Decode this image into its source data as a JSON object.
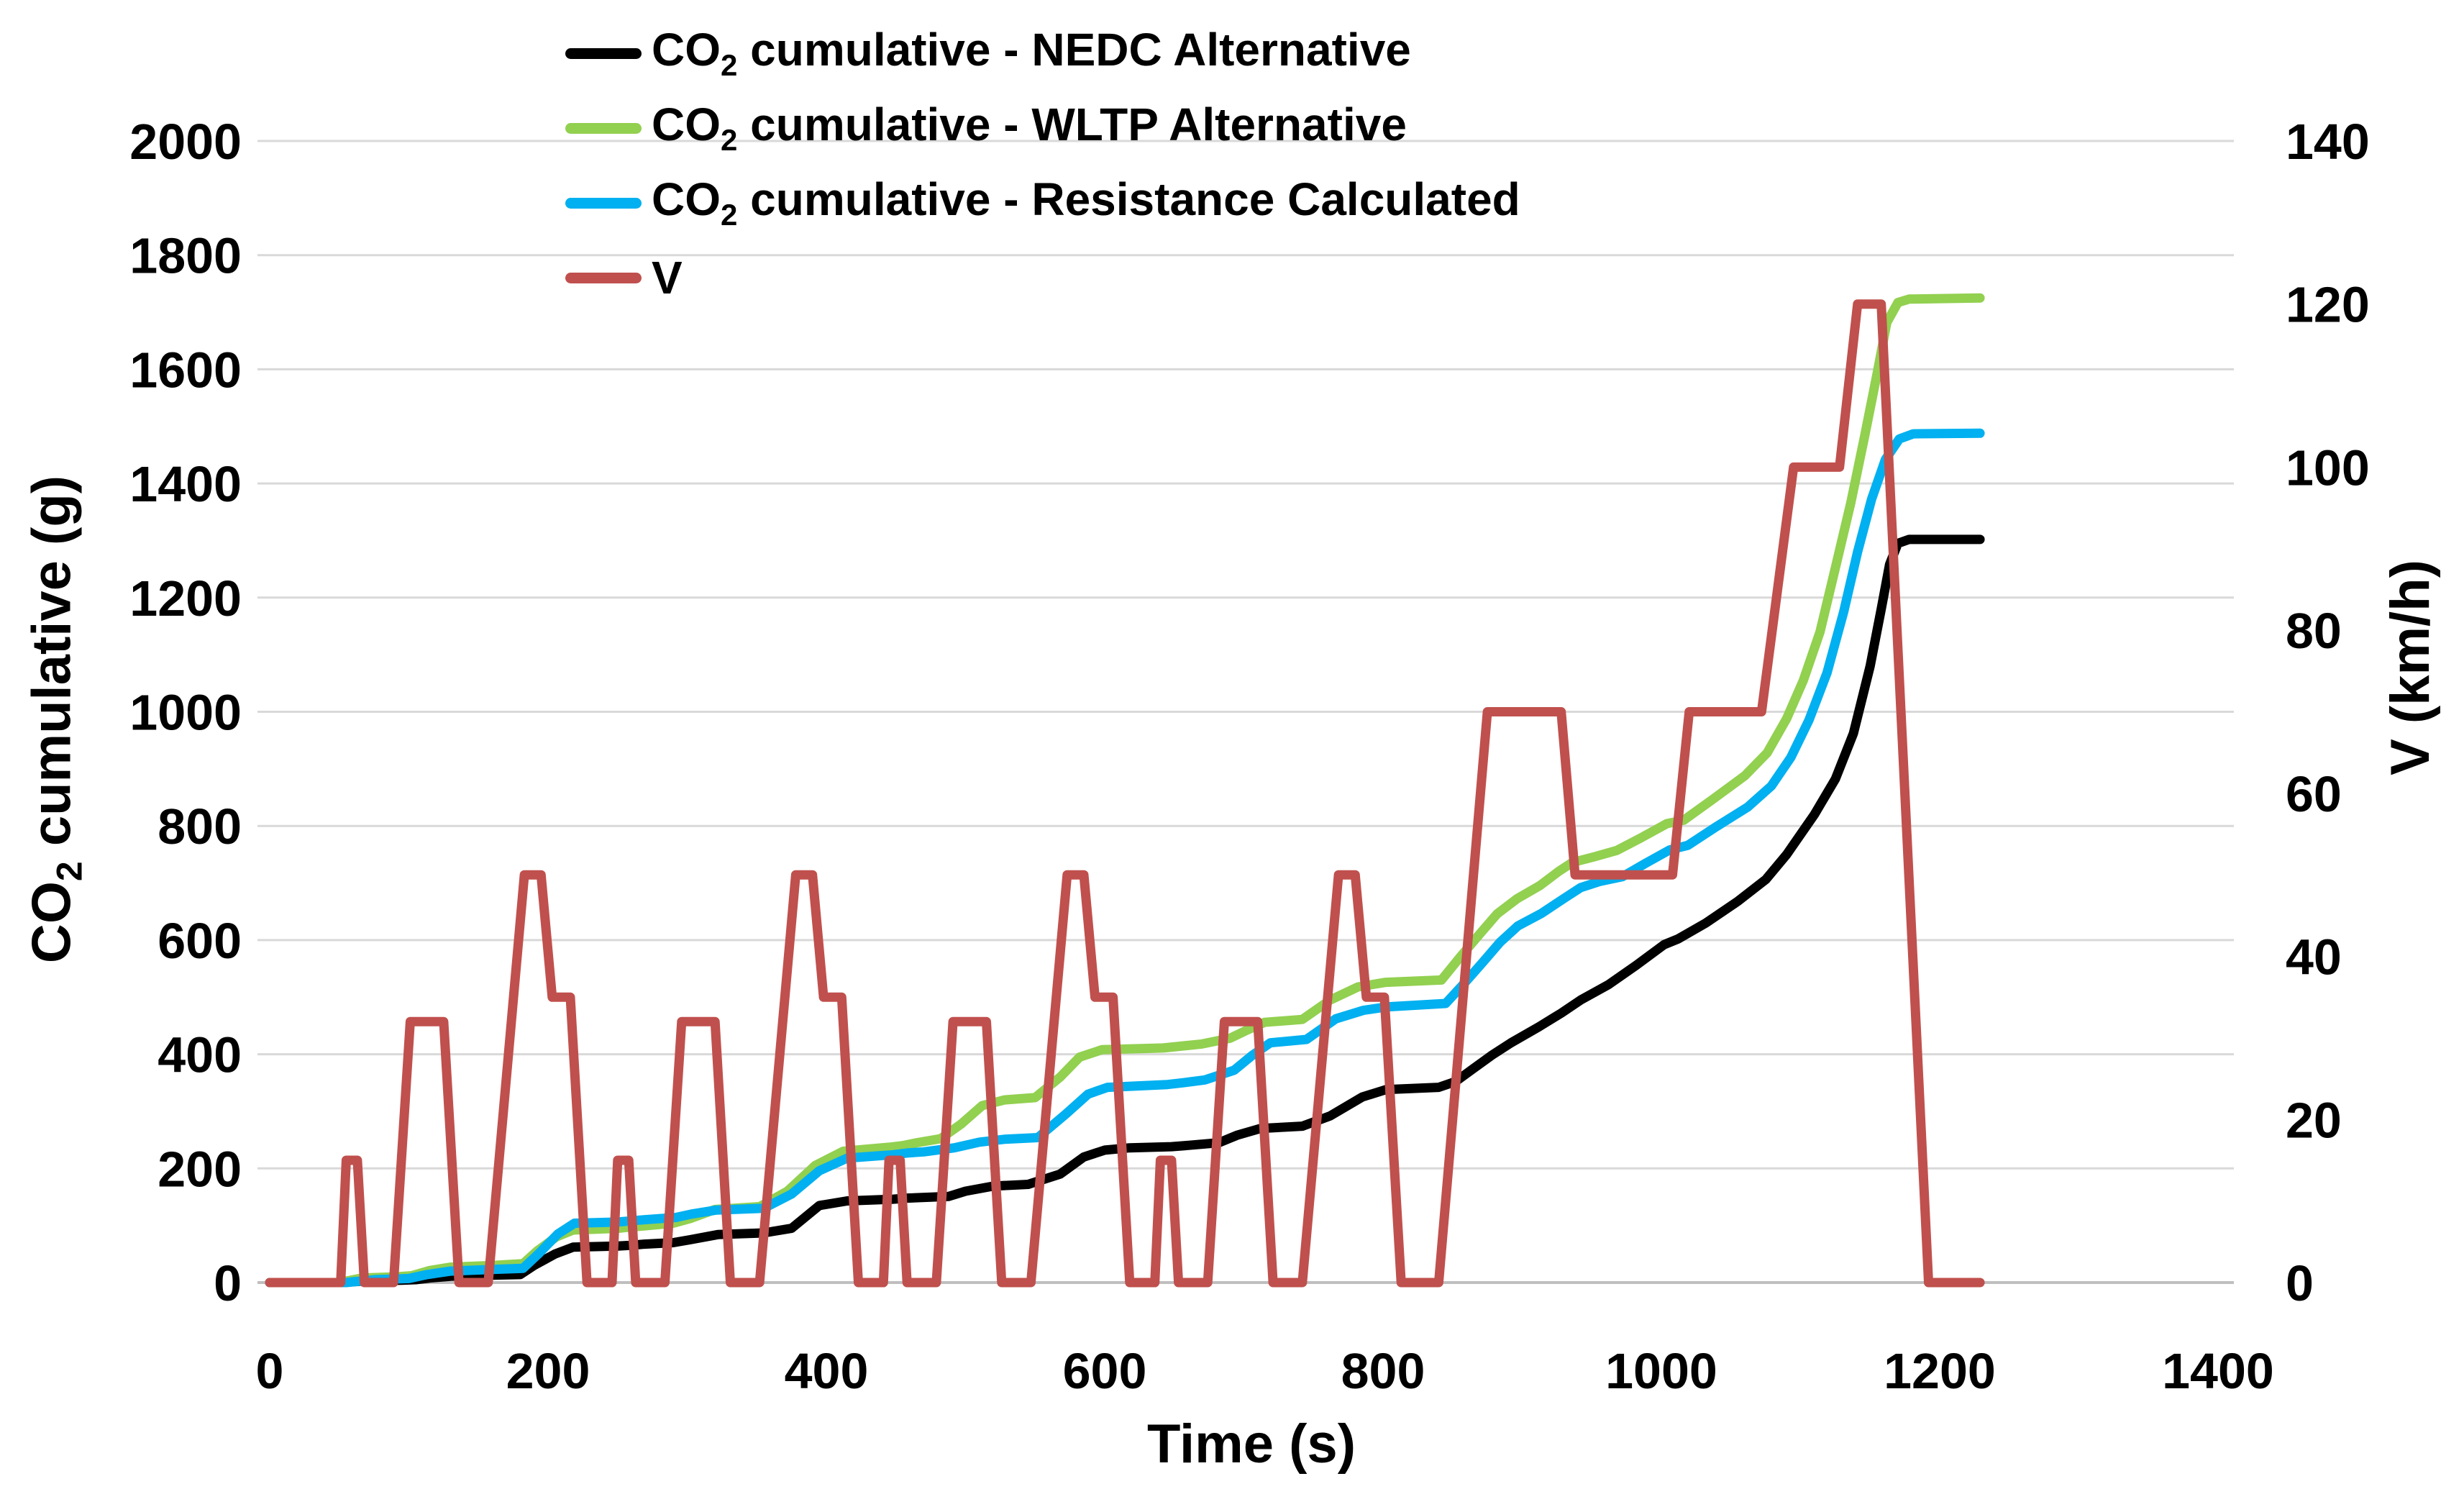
{
  "chart_data": {
    "type": "line",
    "title": "",
    "grid": {
      "horizontal": true,
      "vertical": false,
      "color": "#D9D9D9",
      "axis_color": "#BFBFBF"
    },
    "legend_position": "top-center-inside",
    "x_axis": {
      "label": "Time (s)",
      "min": 0,
      "max": 1400,
      "tick_step": 200,
      "ticks": [
        0,
        200,
        400,
        600,
        800,
        1000,
        1200,
        1400
      ]
    },
    "y_axis_left": {
      "title": "CO2 cumulative (g)",
      "title_parts": {
        "pre": "CO",
        "sub": "2",
        "post": " cumulative (g)"
      },
      "min": 0,
      "max": 2000,
      "tick_step": 200,
      "ticks": [
        0,
        200,
        400,
        600,
        800,
        1000,
        1200,
        1400,
        1600,
        1800,
        2000
      ]
    },
    "y_axis_right": {
      "title": "V (km/h)",
      "min": 0,
      "max": 140,
      "tick_step": 20,
      "ticks": [
        0,
        20,
        40,
        60,
        80,
        100,
        120,
        140
      ]
    },
    "series": [
      {
        "id": "nedc",
        "name": "CO2 cumulative - NEDC Alternative",
        "label_parts": {
          "pre": "CO",
          "sub": "2",
          "post": " cumulative - NEDC Alternative"
        },
        "color": "#000000",
        "y_axis": "left",
        "final_value": 1302,
        "points": [
          [
            0,
            0
          ],
          [
            50,
            0
          ],
          [
            57,
            1
          ],
          [
            70,
            3
          ],
          [
            95,
            4
          ],
          [
            105,
            5
          ],
          [
            115,
            8
          ],
          [
            130,
            11
          ],
          [
            160,
            13
          ],
          [
            180,
            14
          ],
          [
            190,
            30
          ],
          [
            205,
            50
          ],
          [
            218,
            62
          ],
          [
            250,
            64
          ],
          [
            258,
            65
          ],
          [
            268,
            67
          ],
          [
            290,
            70
          ],
          [
            302,
            75
          ],
          [
            322,
            84
          ],
          [
            355,
            87
          ],
          [
            375,
            95
          ],
          [
            395,
            135
          ],
          [
            415,
            143
          ],
          [
            448,
            146
          ],
          [
            458,
            148
          ],
          [
            488,
            151
          ],
          [
            500,
            160
          ],
          [
            520,
            169
          ],
          [
            545,
            172
          ],
          [
            568,
            190
          ],
          [
            585,
            220
          ],
          [
            600,
            232
          ],
          [
            618,
            236
          ],
          [
            648,
            238
          ],
          [
            658,
            240
          ],
          [
            682,
            245
          ],
          [
            695,
            258
          ],
          [
            712,
            270
          ],
          [
            742,
            274
          ],
          [
            762,
            292
          ],
          [
            785,
            325
          ],
          [
            802,
            338
          ],
          [
            840,
            342
          ],
          [
            852,
            352
          ],
          [
            865,
            375
          ],
          [
            878,
            398
          ],
          [
            892,
            420
          ],
          [
            912,
            448
          ],
          [
            928,
            472
          ],
          [
            942,
            495
          ],
          [
            962,
            522
          ],
          [
            982,
            556
          ],
          [
            1002,
            592
          ],
          [
            1012,
            602
          ],
          [
            1032,
            630
          ],
          [
            1055,
            668
          ],
          [
            1075,
            706
          ],
          [
            1090,
            750
          ],
          [
            1110,
            820
          ],
          [
            1125,
            882
          ],
          [
            1138,
            962
          ],
          [
            1150,
            1080
          ],
          [
            1158,
            1180
          ],
          [
            1164,
            1258
          ],
          [
            1170,
            1295
          ],
          [
            1178,
            1302
          ],
          [
            1229,
            1302
          ]
        ]
      },
      {
        "id": "wltp",
        "name": "CO2 cumulative - WLTP Alternative",
        "label_parts": {
          "pre": "CO",
          "sub": "2",
          "post": " cumulative - WLTP Alternative"
        },
        "color": "#92D050",
        "y_axis": "left",
        "final_value": 1725,
        "points": [
          [
            0,
            0
          ],
          [
            48,
            0
          ],
          [
            56,
            3
          ],
          [
            66,
            8
          ],
          [
            90,
            10
          ],
          [
            102,
            12
          ],
          [
            115,
            21
          ],
          [
            130,
            27
          ],
          [
            160,
            30
          ],
          [
            182,
            33
          ],
          [
            192,
            55
          ],
          [
            206,
            80
          ],
          [
            218,
            92
          ],
          [
            250,
            95
          ],
          [
            258,
            97
          ],
          [
            268,
            99
          ],
          [
            290,
            104
          ],
          [
            302,
            112
          ],
          [
            320,
            128
          ],
          [
            352,
            133
          ],
          [
            372,
            160
          ],
          [
            392,
            205
          ],
          [
            412,
            230
          ],
          [
            445,
            237
          ],
          [
            455,
            240
          ],
          [
            465,
            245
          ],
          [
            482,
            252
          ],
          [
            497,
            278
          ],
          [
            512,
            310
          ],
          [
            528,
            320
          ],
          [
            550,
            324
          ],
          [
            568,
            360
          ],
          [
            582,
            395
          ],
          [
            598,
            408
          ],
          [
            642,
            411
          ],
          [
            654,
            414
          ],
          [
            670,
            418
          ],
          [
            690,
            428
          ],
          [
            702,
            442
          ],
          [
            715,
            456
          ],
          [
            742,
            461
          ],
          [
            762,
            495
          ],
          [
            782,
            518
          ],
          [
            802,
            526
          ],
          [
            842,
            530
          ],
          [
            856,
            572
          ],
          [
            870,
            612
          ],
          [
            882,
            646
          ],
          [
            896,
            672
          ],
          [
            913,
            696
          ],
          [
            926,
            720
          ],
          [
            936,
            736
          ],
          [
            952,
            746
          ],
          [
            968,
            757
          ],
          [
            986,
            780
          ],
          [
            1004,
            804
          ],
          [
            1016,
            810
          ],
          [
            1036,
            845
          ],
          [
            1060,
            888
          ],
          [
            1076,
            928
          ],
          [
            1090,
            988
          ],
          [
            1102,
            1055
          ],
          [
            1114,
            1140
          ],
          [
            1126,
            1262
          ],
          [
            1136,
            1365
          ],
          [
            1146,
            1482
          ],
          [
            1155,
            1592
          ],
          [
            1162,
            1682
          ],
          [
            1170,
            1717
          ],
          [
            1178,
            1723
          ],
          [
            1229,
            1725
          ]
        ]
      },
      {
        "id": "resistance",
        "name": "CO2 cumulative - Resistance Calculated",
        "label_parts": {
          "pre": "CO",
          "sub": "2",
          "post": " cumulative - Resistance Calculated"
        },
        "color": "#00B0F0",
        "y_axis": "left",
        "final_value": 1488,
        "points": [
          [
            0,
            0
          ],
          [
            55,
            0
          ],
          [
            63,
            2
          ],
          [
            76,
            5
          ],
          [
            100,
            7
          ],
          [
            113,
            14
          ],
          [
            130,
            20
          ],
          [
            160,
            23
          ],
          [
            182,
            25
          ],
          [
            193,
            50
          ],
          [
            207,
            85
          ],
          [
            219,
            104
          ],
          [
            250,
            106
          ],
          [
            259,
            108
          ],
          [
            269,
            110
          ],
          [
            292,
            114
          ],
          [
            303,
            120
          ],
          [
            321,
            127
          ],
          [
            355,
            130
          ],
          [
            375,
            155
          ],
          [
            395,
            196
          ],
          [
            415,
            218
          ],
          [
            448,
            224
          ],
          [
            458,
            227
          ],
          [
            470,
            229
          ],
          [
            492,
            236
          ],
          [
            510,
            246
          ],
          [
            528,
            251
          ],
          [
            552,
            254
          ],
          [
            572,
            295
          ],
          [
            588,
            330
          ],
          [
            602,
            342
          ],
          [
            645,
            347
          ],
          [
            656,
            350
          ],
          [
            672,
            355
          ],
          [
            693,
            372
          ],
          [
            706,
            398
          ],
          [
            719,
            420
          ],
          [
            745,
            426
          ],
          [
            766,
            462
          ],
          [
            786,
            477
          ],
          [
            803,
            483
          ],
          [
            845,
            489
          ],
          [
            859,
            526
          ],
          [
            872,
            562
          ],
          [
            884,
            596
          ],
          [
            897,
            625
          ],
          [
            914,
            647
          ],
          [
            930,
            673
          ],
          [
            942,
            692
          ],
          [
            956,
            703
          ],
          [
            972,
            711
          ],
          [
            989,
            735
          ],
          [
            1006,
            758
          ],
          [
            1019,
            766
          ],
          [
            1039,
            798
          ],
          [
            1062,
            833
          ],
          [
            1079,
            870
          ],
          [
            1093,
            920
          ],
          [
            1106,
            985
          ],
          [
            1119,
            1068
          ],
          [
            1131,
            1175
          ],
          [
            1141,
            1280
          ],
          [
            1151,
            1372
          ],
          [
            1161,
            1442
          ],
          [
            1171,
            1478
          ],
          [
            1181,
            1487
          ],
          [
            1229,
            1488
          ]
        ]
      },
      {
        "id": "v",
        "name": "V",
        "label_parts": {
          "pre": "V",
          "sub": "",
          "post": ""
        },
        "color": "#C0504D",
        "y_axis": "right",
        "final_value": 0,
        "points": [
          [
            0,
            0
          ],
          [
            51,
            0
          ],
          [
            55,
            15
          ],
          [
            63,
            15
          ],
          [
            68,
            0
          ],
          [
            89,
            0
          ],
          [
            101,
            32
          ],
          [
            125,
            32
          ],
          [
            136,
            0
          ],
          [
            157,
            0
          ],
          [
            183,
            50
          ],
          [
            195,
            50
          ],
          [
            203,
            35
          ],
          [
            216,
            35
          ],
          [
            228,
            0
          ],
          [
            246,
            0
          ],
          [
            250,
            15
          ],
          [
            258,
            15
          ],
          [
            263,
            0
          ],
          [
            284,
            0
          ],
          [
            296,
            32
          ],
          [
            320,
            32
          ],
          [
            331,
            0
          ],
          [
            352,
            0
          ],
          [
            378,
            50
          ],
          [
            390,
            50
          ],
          [
            398,
            35
          ],
          [
            411,
            35
          ],
          [
            423,
            0
          ],
          [
            441,
            0
          ],
          [
            445,
            15
          ],
          [
            453,
            15
          ],
          [
            458,
            0
          ],
          [
            479,
            0
          ],
          [
            491,
            32
          ],
          [
            515,
            32
          ],
          [
            526,
            0
          ],
          [
            547,
            0
          ],
          [
            573,
            50
          ],
          [
            585,
            50
          ],
          [
            593,
            35
          ],
          [
            606,
            35
          ],
          [
            618,
            0
          ],
          [
            636,
            0
          ],
          [
            640,
            15
          ],
          [
            648,
            15
          ],
          [
            653,
            0
          ],
          [
            674,
            0
          ],
          [
            686,
            32
          ],
          [
            710,
            32
          ],
          [
            721,
            0
          ],
          [
            742,
            0
          ],
          [
            768,
            50
          ],
          [
            780,
            50
          ],
          [
            788,
            35
          ],
          [
            801,
            35
          ],
          [
            813,
            0
          ],
          [
            840,
            0
          ],
          [
            875,
            70
          ],
          [
            928,
            70
          ],
          [
            938,
            50
          ],
          [
            1008,
            50
          ],
          [
            1020,
            70
          ],
          [
            1072,
            70
          ],
          [
            1095,
            100
          ],
          [
            1128,
            100
          ],
          [
            1141,
            120
          ],
          [
            1158,
            120
          ],
          [
            1192,
            0
          ],
          [
            1229,
            0
          ]
        ]
      }
    ],
    "plot_geometry_note": "x: t=0..1400 s maps 375..3084 px; y-left: 0..2000 g maps 1783..196 px; y-right: 0..140 km/h maps 1783..196 px"
  }
}
